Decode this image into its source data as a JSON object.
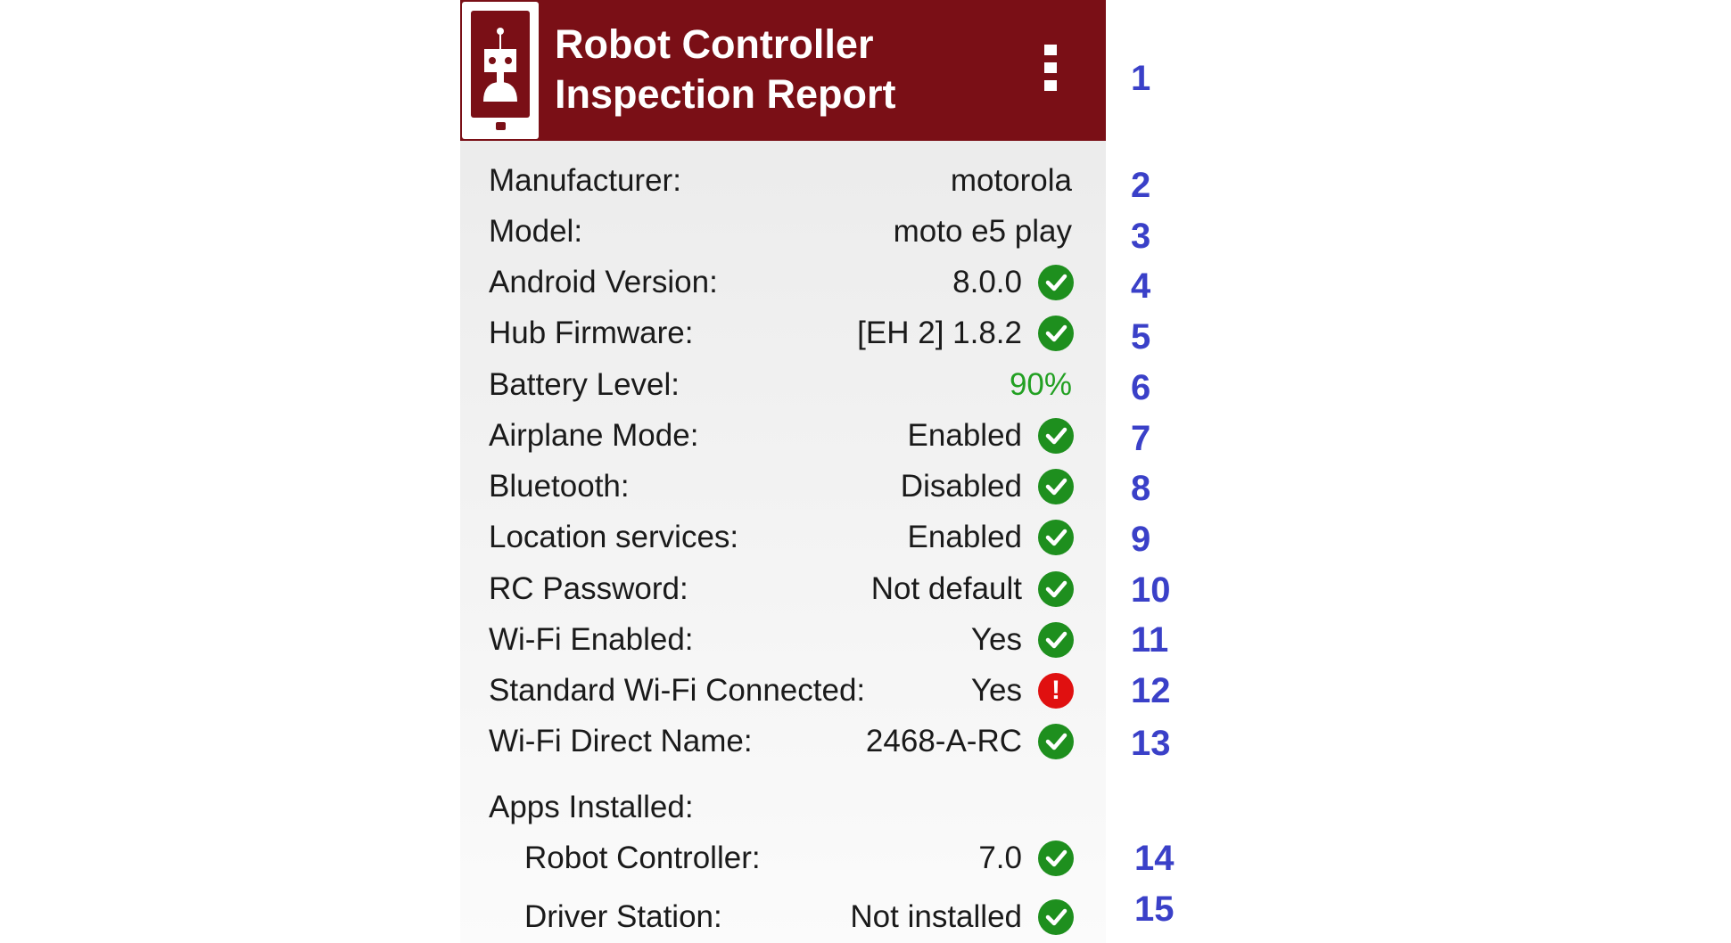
{
  "header": {
    "title_line1": "Robot Controller",
    "title_line2": "Inspection Report",
    "menu_icon": "more-vertical-icon",
    "logo_icon": "robot-phone-icon",
    "color": "#7a0f16"
  },
  "rows": [
    {
      "label": "Manufacturer:",
      "value": "motorola",
      "status": "none"
    },
    {
      "label": "Model:",
      "value": "moto e5 play",
      "status": "none"
    },
    {
      "label": "Android Version:",
      "value": "8.0.0",
      "status": "ok"
    },
    {
      "label": "Hub Firmware:",
      "value": "[EH 2] 1.8.2",
      "status": "ok"
    },
    {
      "label": "Battery Level:",
      "value": "90%",
      "status": "none",
      "value_color": "#22a022"
    },
    {
      "label": "Airplane Mode:",
      "value": "Enabled",
      "status": "ok"
    },
    {
      "label": "Bluetooth:",
      "value": "Disabled",
      "status": "ok"
    },
    {
      "label": "Location services:",
      "value": "Enabled",
      "status": "ok"
    },
    {
      "label": "RC Password:",
      "value": "Not default",
      "status": "ok"
    },
    {
      "label": "Wi-Fi Enabled:",
      "value": "Yes",
      "status": "ok"
    },
    {
      "label": "Standard Wi-Fi Connected:",
      "value": "Yes",
      "status": "error"
    },
    {
      "label": "Wi-Fi Direct Name:",
      "value": "2468-A-RC",
      "status": "ok"
    }
  ],
  "apps": {
    "heading": "Apps Installed:",
    "items": [
      {
        "label": "Robot Controller:",
        "value": "7.0",
        "status": "ok"
      },
      {
        "label": "Driver Station:",
        "value": "Not installed",
        "status": "ok"
      }
    ]
  },
  "annotations": [
    "1",
    "2",
    "3",
    "4",
    "5",
    "6",
    "7",
    "8",
    "9",
    "10",
    "11",
    "12",
    "13",
    "14",
    "15"
  ],
  "colors": {
    "ok": "#1e8f1e",
    "error": "#e01010",
    "annotation": "#3a40c8"
  },
  "error_glyph": "!"
}
